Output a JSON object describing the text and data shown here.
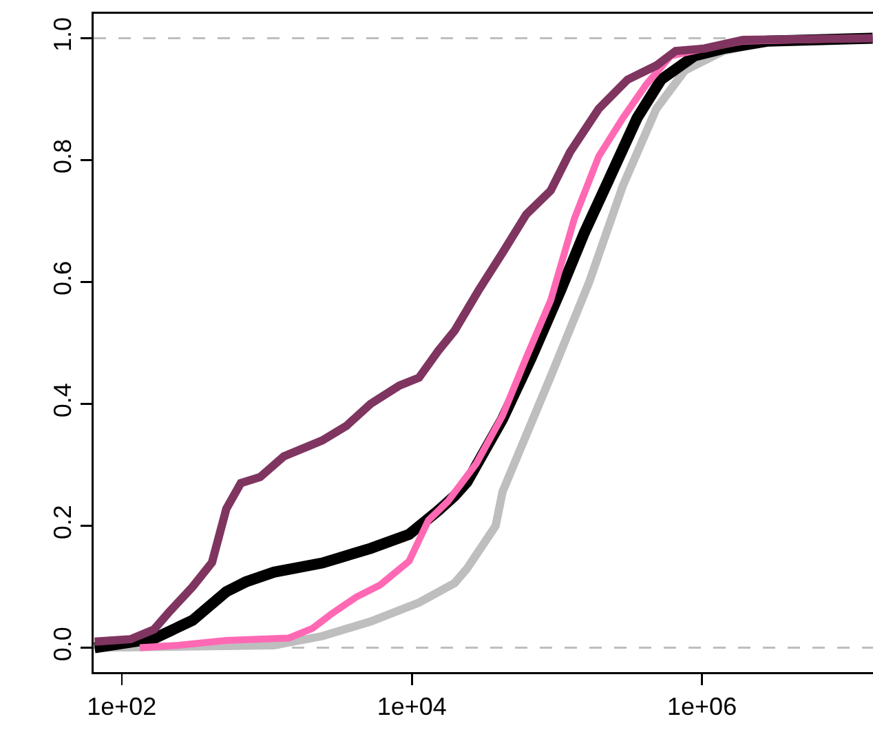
{
  "chart_data": {
    "type": "line",
    "log": "x",
    "grid": false,
    "marker": "none",
    "line_style": "solid",
    "xlim": [
      64,
      15100000
    ],
    "xticks": [
      {
        "value": 100,
        "label": "1e+02"
      },
      {
        "value": 10000,
        "label": "1e+04"
      },
      {
        "value": 1000000,
        "label": "1e+06"
      }
    ],
    "ylim": [
      -0.04,
      1.04
    ],
    "yticks": [
      {
        "value": 0,
        "label": "0.0"
      },
      {
        "value": 0.2,
        "label": "0.2"
      },
      {
        "value": 0.4,
        "label": "0.4"
      },
      {
        "value": 0.6,
        "label": "0.6"
      },
      {
        "value": 0.8,
        "label": "0.8"
      },
      {
        "value": 1,
        "label": "1.0"
      }
    ],
    "ref_lines": [
      {
        "axis": "y",
        "value": 0,
        "color": "#bebebe",
        "line_style": "dashed"
      },
      {
        "axis": "y",
        "value": 1,
        "color": "#bebebe",
        "line_style": "dashed"
      }
    ],
    "series": [
      {
        "color": "#bebebe",
        "x": [
          65,
          1120,
          2410,
          5190,
          11200,
          19700,
          24000,
          37800,
          42200,
          90600,
          167000,
          285000,
          484000,
          762000,
          1410000,
          2810000,
          15000000
        ],
        "values": [
          0,
          0.004,
          0.019,
          0.043,
          0.074,
          0.106,
          0.13,
          0.2,
          0.256,
          0.445,
          0.6,
          0.758,
          0.884,
          0.947,
          0.979,
          0.994,
          1
        ]
      },
      {
        "color": "#000000",
        "x": [
          65,
          167,
          308,
          526,
          716,
          1120,
          2410,
          5190,
          9570,
          15200,
          19700,
          24000,
          42200,
          66700,
          106000,
          154000,
          226000,
          357000,
          523000,
          889000,
          1410000,
          2810000,
          15000000
        ],
        "values": [
          0,
          0.015,
          0.045,
          0.092,
          0.108,
          0.124,
          0.139,
          0.163,
          0.186,
          0.225,
          0.249,
          0.272,
          0.375,
          0.476,
          0.586,
          0.68,
          0.766,
          0.869,
          0.932,
          0.971,
          0.983,
          0.995,
          1
        ]
      },
      {
        "color": "#ff69b4",
        "x": [
          133,
          246,
          526,
          1420,
          2070,
          2810,
          4130,
          6040,
          9570,
          13000,
          17700,
          27800,
          42200,
          61500,
          90600,
          132000,
          194000,
          285000,
          413000,
          610000,
          1040000,
          1910000,
          15000000
        ],
        "values": [
          0,
          0.004,
          0.012,
          0.016,
          0.032,
          0.056,
          0.083,
          0.103,
          0.142,
          0.209,
          0.24,
          0.302,
          0.381,
          0.476,
          0.57,
          0.704,
          0.806,
          0.869,
          0.924,
          0.971,
          0.983,
          0.995,
          1
        ]
      },
      {
        "color": "#7f3560",
        "x": [
          65,
          115,
          167,
          211,
          308,
          419,
          526,
          662,
          900,
          1310,
          2410,
          3540,
          5190,
          8200,
          11200,
          15200,
          19700,
          28800,
          42200,
          61500,
          90600,
          123000,
          194000,
          307000,
          484000,
          658000,
          1040000,
          1910000,
          15000000
        ],
        "values": [
          0.01,
          0.014,
          0.03,
          0.058,
          0.1,
          0.14,
          0.228,
          0.27,
          0.28,
          0.314,
          0.34,
          0.364,
          0.4,
          0.43,
          0.443,
          0.487,
          0.52,
          0.586,
          0.648,
          0.711,
          0.75,
          0.813,
          0.884,
          0.932,
          0.955,
          0.979,
          0.983,
          0.997,
          1
        ]
      }
    ]
  }
}
